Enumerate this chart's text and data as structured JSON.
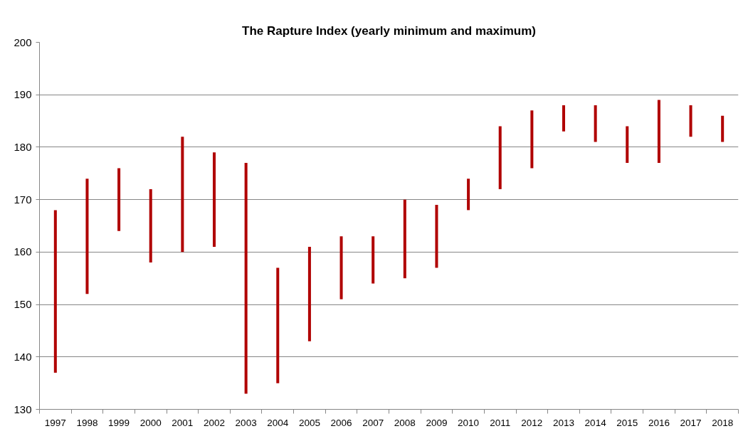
{
  "chart_data": {
    "type": "bar",
    "title": "The Rapture Index (yearly minimum and maximum)",
    "categories": [
      "1997",
      "1998",
      "1999",
      "2000",
      "2001",
      "2002",
      "2003",
      "2004",
      "2005",
      "2006",
      "2007",
      "2008",
      "2009",
      "2010",
      "2011",
      "2012",
      "2013",
      "2014",
      "2015",
      "2016",
      "2017",
      "2018"
    ],
    "base": [
      137,
      152,
      164,
      158,
      160,
      161,
      133,
      135,
      143,
      151,
      154,
      155,
      157,
      168,
      172,
      176,
      183,
      181,
      177,
      177,
      182,
      181
    ],
    "values": [
      31,
      22,
      12,
      14,
      22,
      18,
      44,
      22,
      18,
      12,
      9,
      15,
      12,
      6,
      12,
      11,
      5,
      7,
      7,
      12,
      6,
      5
    ],
    "color": "#b00000",
    "ylim": [
      130,
      200
    ],
    "yticks": [
      130,
      140,
      150,
      160,
      170,
      180,
      190,
      200
    ],
    "grid": "y"
  }
}
